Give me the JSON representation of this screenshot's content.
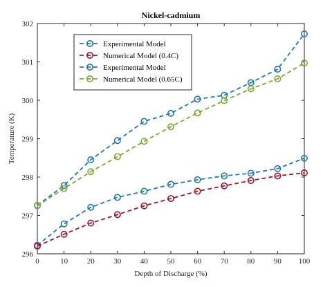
{
  "chart_data": {
    "type": "line",
    "title": "Nickel-cadmium",
    "xlabel": "Depth of Discharge (%)",
    "ylabel": "Temperature (K)",
    "xlim": [
      0,
      100
    ],
    "ylim": [
      296,
      302
    ],
    "xticks": [
      0,
      10,
      20,
      30,
      40,
      50,
      60,
      70,
      80,
      90,
      100
    ],
    "yticks": [
      296,
      297,
      298,
      299,
      300,
      301,
      302
    ],
    "grid": false,
    "legend_position": "top-left",
    "x": [
      0,
      10,
      20,
      30,
      40,
      50,
      60,
      70,
      80,
      90,
      100
    ],
    "series": [
      {
        "name": "Experimental Model",
        "color": "#1f77b4",
        "values": [
          296.22,
          296.78,
          297.21,
          297.47,
          297.63,
          297.81,
          297.93,
          298.03,
          298.1,
          298.22,
          298.49
        ]
      },
      {
        "name": "Numerical Model (0.4C)",
        "color": "#a2142f",
        "values": [
          296.2,
          296.51,
          296.8,
          297.02,
          297.25,
          297.44,
          297.63,
          297.77,
          297.91,
          298.03,
          298.11
        ]
      },
      {
        "name": "Experimental Model",
        "color": "#1f77b4",
        "values": [
          297.26,
          297.78,
          298.45,
          298.95,
          299.45,
          299.66,
          300.03,
          300.13,
          300.46,
          300.81,
          301.73
        ]
      },
      {
        "name": "Numerical Model (0.65C)",
        "color": "#77ac30",
        "values": [
          297.25,
          297.7,
          298.14,
          298.53,
          298.93,
          299.31,
          299.67,
          299.99,
          300.3,
          300.56,
          300.97
        ]
      }
    ]
  }
}
